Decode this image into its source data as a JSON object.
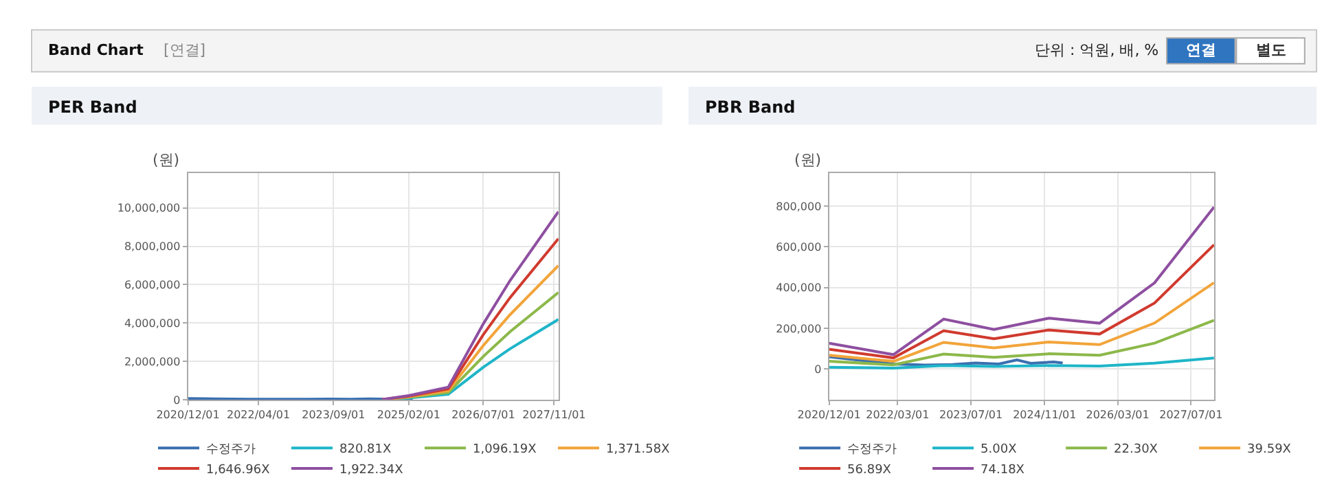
{
  "chart_data": [
    {
      "type": "other",
      "title": "Band Chart",
      "annotations": [
        "[연결]",
        "단위 : 억원, 배, %",
        "연결",
        "별도"
      ]
    },
    {
      "type": "line",
      "title": "PER Band",
      "ylabel": "(원)",
      "grid": true,
      "legend": "bottom",
      "marker": "none",
      "line_style": "solid",
      "xlim": [
        "2020-12-01",
        "2027-12-01"
      ],
      "xticks": [
        {
          "value": "2020-12-01",
          "label": "2020/12/01"
        },
        {
          "value": "2022-04-01",
          "label": "2022/04/01"
        },
        {
          "value": "2023-09-01",
          "label": "2023/09/01"
        },
        {
          "value": "2025-02-01",
          "label": "2025/02/01"
        },
        {
          "value": "2026-07-01",
          "label": "2026/07/01"
        },
        {
          "value": "2027-11-01",
          "label": "2027/11/01"
        }
      ],
      "ylim": [
        0,
        11800000
      ],
      "yticks": [
        0,
        {
          "value": 2000000,
          "label": "2,000,000"
        },
        {
          "value": 4000000,
          "label": "4,000,000"
        },
        {
          "value": 6000000,
          "label": "6,000,000"
        },
        {
          "value": 8000000,
          "label": "8,000,000"
        },
        {
          "value": 10000000,
          "label": "10,000,000"
        }
      ],
      "series": [
        {
          "name": "수정주가",
          "color": "#3a6fb0",
          "x": [
            "2020-12-01",
            "2021-04-01",
            "2021-06-01",
            "2022-02-01",
            "2022-09-01",
            "2023-03-01",
            "2023-08-01",
            "2024-01-01",
            "2024-05-01",
            "2024-08-01",
            "2025-01-01",
            "2025-03-01"
          ],
          "values": [
            60000,
            50000,
            45000,
            25000,
            20000,
            22000,
            30000,
            25000,
            45000,
            28000,
            35000,
            30000
          ]
        },
        {
          "name": "820.81X",
          "color": "#1fb5c8",
          "x": [
            "2024-08-01",
            "2025-02-01",
            "2025-11-01",
            "2026-07-01",
            "2027-01-01",
            "2027-12-01"
          ],
          "values": [
            4000,
            90000,
            279000,
            1691000,
            2651000,
            4186000
          ]
        },
        {
          "name": "1,096.19X",
          "color": "#8cb84a",
          "x": [
            "2024-08-01",
            "2025-02-01",
            "2025-11-01",
            "2026-07-01",
            "2027-01-01",
            "2027-12-01"
          ],
          "values": [
            5000,
            121000,
            373000,
            2258000,
            3541000,
            5591000
          ]
        },
        {
          "name": "1,371.58X",
          "color": "#f2a43a",
          "x": [
            "2024-08-01",
            "2025-02-01",
            "2025-11-01",
            "2026-07-01",
            "2027-01-01",
            "2027-12-01"
          ],
          "values": [
            7000,
            151000,
            466000,
            2825000,
            4430000,
            6995000
          ]
        },
        {
          "name": "1,646.96X",
          "color": "#d03a2e",
          "x": [
            "2024-08-01",
            "2025-02-01",
            "2025-11-01",
            "2026-07-01",
            "2027-01-01",
            "2027-12-01"
          ],
          "values": [
            8000,
            181000,
            560000,
            3393000,
            5320000,
            8399000
          ]
        },
        {
          "name": "1,922.34X",
          "color": "#8e4fa0",
          "x": [
            "2024-08-01",
            "2025-02-01",
            "2025-11-01",
            "2026-07-01",
            "2027-01-01",
            "2027-12-01"
          ],
          "values": [
            10000,
            211000,
            654000,
            3960000,
            6209000,
            9804000
          ]
        }
      ]
    },
    {
      "type": "line",
      "title": "PBR Band",
      "ylabel": "(원)",
      "grid": true,
      "legend": "bottom",
      "marker": "none",
      "line_style": "solid",
      "xlim": [
        "2020-12-01",
        "2027-12-01"
      ],
      "xticks": [
        {
          "value": "2020-12-01",
          "label": "2020/12/01"
        },
        {
          "value": "2022-03-01",
          "label": "2022/03/01"
        },
        {
          "value": "2023-07-01",
          "label": "2023/07/01"
        },
        {
          "value": "2024-11-01",
          "label": "2024/11/01"
        },
        {
          "value": "2026-03-01",
          "label": "2026/03/01"
        },
        {
          "value": "2027-07-01",
          "label": "2027/07/01"
        }
      ],
      "ylim": [
        -150000,
        960000
      ],
      "yticks": [
        0,
        {
          "value": 200000,
          "label": "200,000"
        },
        {
          "value": 400000,
          "label": "400,000"
        },
        {
          "value": 600000,
          "label": "600,000"
        },
        {
          "value": 800000,
          "label": "800,000"
        }
      ],
      "series": [
        {
          "name": "수정주가",
          "color": "#3a6fb0",
          "x": [
            "2020-12-01",
            "2021-04-01",
            "2021-06-01",
            "2022-02-01",
            "2022-09-01",
            "2023-03-01",
            "2023-08-01",
            "2024-01-01",
            "2024-05-01",
            "2024-08-01",
            "2025-01-01",
            "2025-03-01"
          ],
          "values": [
            60000,
            50000,
            45000,
            25000,
            20000,
            22000,
            30000,
            25000,
            45000,
            28000,
            35000,
            30000
          ]
        },
        {
          "name": "5.00X",
          "color": "#1fb5c8",
          "x": [
            "2020-12-01",
            "2022-02-01",
            "2023-01-01",
            "2023-12-01",
            "2024-12-01",
            "2025-11-01",
            "2026-11-01",
            "2027-12-01"
          ],
          "values": [
            9000,
            5000,
            17000,
            13000,
            17000,
            15000,
            29000,
            54000
          ]
        },
        {
          "name": "22.30X",
          "color": "#8cb84a",
          "x": [
            "2020-12-01",
            "2022-02-01",
            "2023-01-01",
            "2023-12-01",
            "2024-12-01",
            "2025-11-01",
            "2026-11-01",
            "2027-12-01"
          ],
          "values": [
            38000,
            21000,
            74000,
            58000,
            75000,
            68000,
            127000,
            239000
          ]
        },
        {
          "name": "39.59X",
          "color": "#f2a43a",
          "x": [
            "2020-12-01",
            "2022-02-01",
            "2023-01-01",
            "2023-12-01",
            "2024-12-01",
            "2025-11-01",
            "2026-11-01",
            "2027-12-01"
          ],
          "values": [
            68000,
            38000,
            131000,
            104000,
            133000,
            120000,
            226000,
            424000
          ]
        },
        {
          "name": "56.89X",
          "color": "#d03a2e",
          "x": [
            "2020-12-01",
            "2022-02-01",
            "2023-01-01",
            "2023-12-01",
            "2024-12-01",
            "2025-11-01",
            "2026-11-01",
            "2027-12-01"
          ],
          "values": [
            97000,
            55000,
            188000,
            149000,
            192000,
            172000,
            324000,
            610000
          ]
        },
        {
          "name": "74.18X",
          "color": "#8e4fa0",
          "x": [
            "2020-12-01",
            "2022-02-01",
            "2023-01-01",
            "2023-12-01",
            "2024-12-01",
            "2025-11-01",
            "2026-11-01",
            "2027-12-01"
          ],
          "values": [
            127000,
            71000,
            245000,
            194000,
            250000,
            225000,
            423000,
            795000
          ]
        }
      ]
    }
  ]
}
